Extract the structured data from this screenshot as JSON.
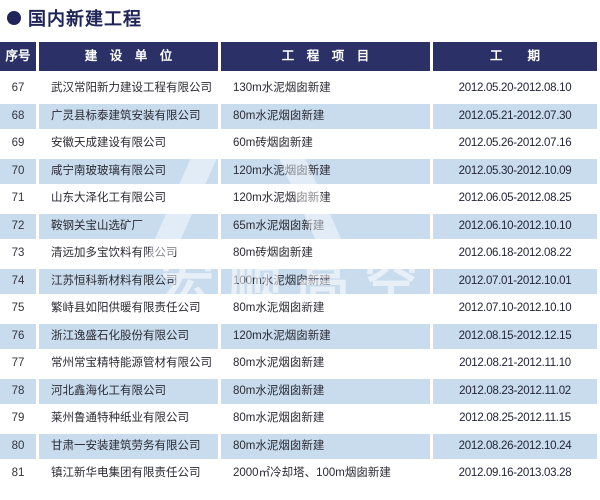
{
  "page": {
    "title": "国内新建工程"
  },
  "colors": {
    "navy": "#2b3166",
    "alt_row_blue": "#c9dcee",
    "title_navy": "#1f2558"
  },
  "watermark": {
    "text": "宏顺高空"
  },
  "table": {
    "headers": [
      "序号",
      "建　设　单　位",
      "工　程　项　目",
      "工　　期"
    ],
    "rows": [
      {
        "no": "67",
        "company": "武汉常阳新力建设工程有限公司",
        "project": "130m水泥烟囱新建",
        "period": "2012.05.20-2012.08.10"
      },
      {
        "no": "68",
        "company": "广灵县标泰建筑安装有限公司",
        "project": "80m水泥烟囱新建",
        "period": "2012.05.21-2012.07.30"
      },
      {
        "no": "69",
        "company": "安徽天成建设有限公司",
        "project": "60m砖烟囱新建",
        "period": "2012.05.26-2012.07.16"
      },
      {
        "no": "70",
        "company": "咸宁南玻玻璃有限公司",
        "project": "120m水泥烟囱新建",
        "period": "2012.05.30-2012.10.09"
      },
      {
        "no": "71",
        "company": "山东大泽化工有限公司",
        "project": "120m水泥烟囱新建",
        "period": "2012.06.05-2012.08.25"
      },
      {
        "no": "72",
        "company": "鞍钢关宝山选矿厂",
        "project": "65m水泥烟囱新建",
        "period": "2012.06.10-2012.10.10"
      },
      {
        "no": "73",
        "company": "清远加多宝饮料有限公司",
        "project": "80m砖烟囱新建",
        "period": "2012.06.18-2012.08.22"
      },
      {
        "no": "74",
        "company": "江苏恒科新材料有限公司",
        "project": "100m水泥烟囱新建",
        "period": "2012.07.01-2012.10.01"
      },
      {
        "no": "75",
        "company": "繁峙县如阳供暖有限责任公司",
        "project": "80m水泥烟囱新建",
        "period": "2012.07.10-2012.10.10"
      },
      {
        "no": "76",
        "company": "浙江逸盛石化股份有限公司",
        "project": "120m水泥烟囱新建",
        "period": "2012.08.15-2012.12.15"
      },
      {
        "no": "77",
        "company": "常州常宝精特能源管材有限公司",
        "project": "80m水泥烟囱新建",
        "period": "2012.08.21-2012.11.10"
      },
      {
        "no": "78",
        "company": "河北鑫海化工有限公司",
        "project": "80m水泥烟囱新建",
        "period": "2012.08.23-2012.11.02"
      },
      {
        "no": "79",
        "company": "莱州鲁通特种纸业有限公司",
        "project": "80m水泥烟囱新建",
        "period": "2012.08.25-2012.11.15"
      },
      {
        "no": "80",
        "company": "甘肃一安装建筑劳务有限公司",
        "project": "80m水泥烟囱新建",
        "period": "2012.08.26-2012.10.24"
      },
      {
        "no": "81",
        "company": "镇江新华电集团有限责任公司",
        "project": "2000㎡冷却塔、100m烟囱新建",
        "period": "2012.09.16-2013.03.28"
      }
    ]
  }
}
